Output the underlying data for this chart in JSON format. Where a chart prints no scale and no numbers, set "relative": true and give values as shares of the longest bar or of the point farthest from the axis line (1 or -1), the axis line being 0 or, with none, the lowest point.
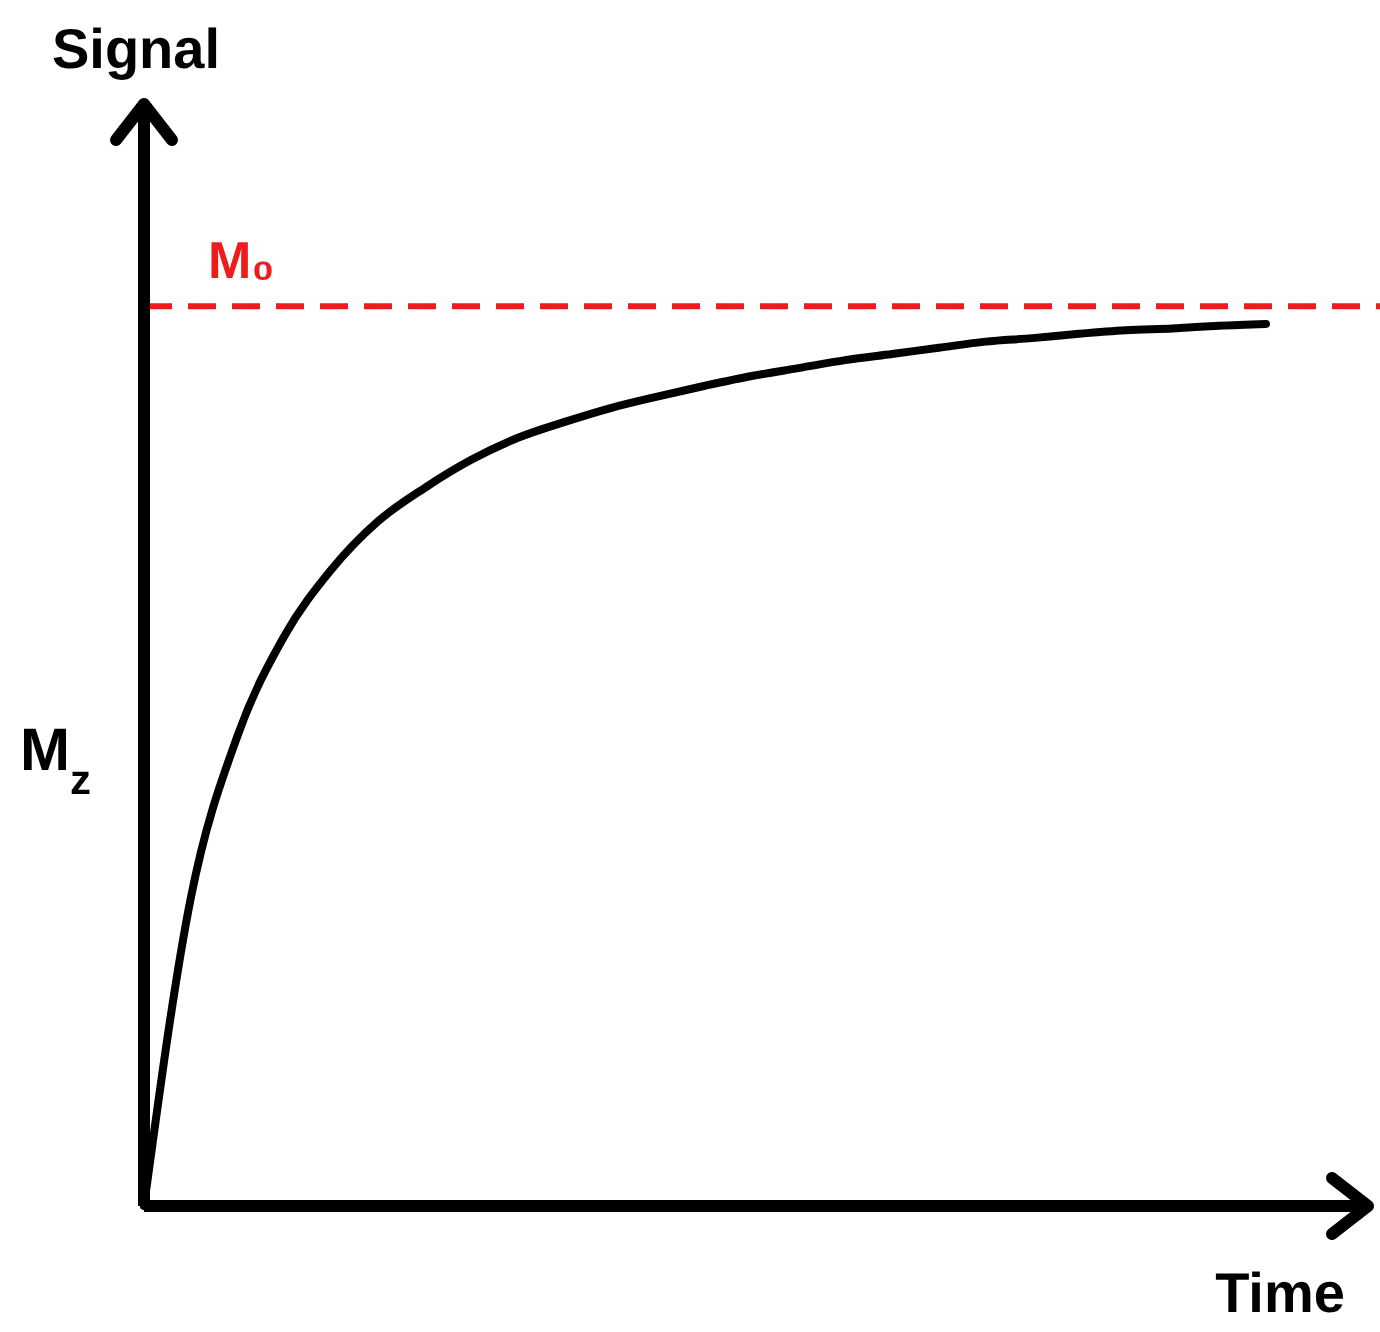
{
  "chart_data": {
    "type": "line",
    "relative": true,
    "ylabel": "Signal",
    "xlabel": "Time",
    "categories": [
      null,
      null,
      null,
      null,
      null,
      null,
      null,
      null,
      null,
      null,
      null,
      null,
      null,
      null,
      null,
      null,
      null,
      null,
      null,
      null,
      null,
      null,
      null,
      null,
      null
    ],
    "series": [
      {
        "color": "#000000",
        "values": [
          0,
          0.349,
          0.533,
          0.646,
          0.721,
          0.776,
          0.814,
          0.846,
          0.871,
          0.889,
          0.905,
          0.918,
          0.93,
          0.941,
          0.95,
          0.959,
          0.966,
          0.973,
          0.98,
          0.984,
          0.989,
          0.993,
          0.995,
          0.998,
          1
        ]
      }
    ],
    "ref_lines": [
      {
        "axis": "y",
        "value": 1.02,
        "label": "M₀",
        "color": "#ee1c1c",
        "line_style": "dashed"
      }
    ],
    "annotations": [
      "M$_{z}$"
    ]
  }
}
